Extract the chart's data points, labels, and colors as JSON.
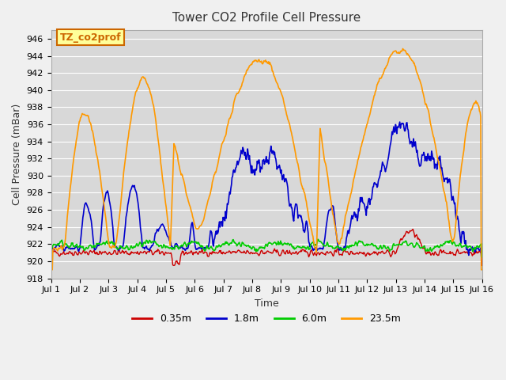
{
  "title": "Tower CO2 Profile Cell Pressure",
  "xlabel": "Time",
  "ylabel": "Cell Pressure (mBar)",
  "ylim": [
    918,
    947
  ],
  "yticks": [
    918,
    920,
    922,
    924,
    926,
    928,
    930,
    932,
    934,
    936,
    938,
    940,
    942,
    944,
    946
  ],
  "bg_color": "#e8e8e8",
  "plot_bg_color": "#d8d8d8",
  "series": {
    "0.35m": {
      "color": "#cc0000",
      "lw": 1.0
    },
    "1.8m": {
      "color": "#0000cc",
      "lw": 1.2
    },
    "6.0m": {
      "color": "#00cc00",
      "lw": 1.2
    },
    "23.5m": {
      "color": "#ff9900",
      "lw": 1.2
    }
  },
  "xtick_labels": [
    "Jul 1",
    "Jul 2",
    "Jul 3",
    "Jul 4",
    "Jul 5",
    "Jul 6",
    "Jul 7",
    "Jul 8",
    "Jul 9",
    "Jul 10",
    "Jul 11",
    "Jul 12",
    "Jul 13",
    "Jul 14",
    "Jul 15",
    "Jul 16"
  ],
  "n_days": 15,
  "pts_per_day": 48,
  "annotation_text": "TZ_co2prof",
  "annotation_color": "#cc6600",
  "annotation_bg": "#ffff99",
  "annotation_border": "#cc6600"
}
